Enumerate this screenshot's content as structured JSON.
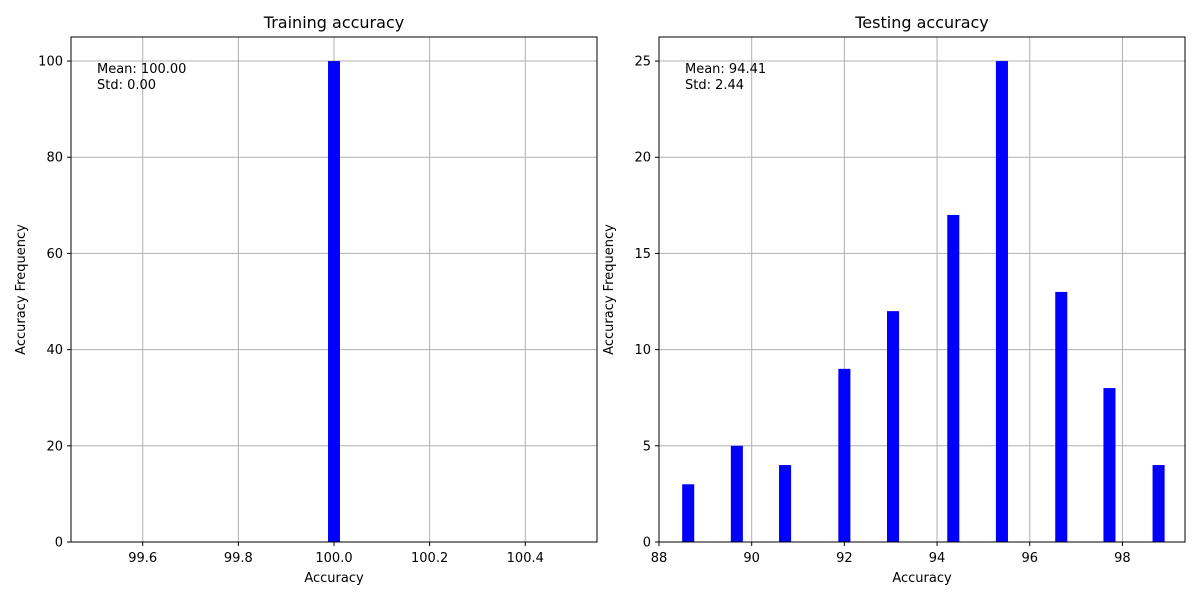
{
  "chart_data": [
    {
      "type": "bar",
      "title": "Training accuracy",
      "xlabel": "Accuracy",
      "ylabel": "Accuracy Frequency",
      "xlim": [
        99.45,
        100.55
      ],
      "ylim": [
        0,
        105
      ],
      "xticks": [
        99.6,
        99.8,
        100.0,
        100.2,
        100.4
      ],
      "xtick_labels": [
        "99.6",
        "99.8",
        "100.0",
        "100.2",
        "100.4"
      ],
      "yticks": [
        0,
        20,
        40,
        60,
        80,
        100
      ],
      "grid": true,
      "color": "#0000ff",
      "bar_width": 0.025,
      "bars": [
        {
          "x": 100.0,
          "value": 100
        }
      ],
      "annotation": [
        "Mean: 100.00",
        "Std: 0.00"
      ]
    },
    {
      "type": "bar",
      "title": "Testing accuracy",
      "xlabel": "Accuracy",
      "ylabel": "Accuracy Frequency",
      "xlim": [
        88.0,
        99.35
      ],
      "ylim": [
        0,
        26.25
      ],
      "xticks": [
        88,
        90,
        92,
        94,
        96,
        98
      ],
      "xtick_labels": [
        "88",
        "90",
        "92",
        "94",
        "96",
        "98"
      ],
      "yticks": [
        0,
        5,
        10,
        15,
        20,
        25
      ],
      "grid": true,
      "color": "#0000ff",
      "bar_width": 0.26,
      "bars": [
        {
          "x": 88.63,
          "value": 3
        },
        {
          "x": 89.68,
          "value": 5
        },
        {
          "x": 90.72,
          "value": 4
        },
        {
          "x": 92.0,
          "value": 9
        },
        {
          "x": 93.05,
          "value": 12
        },
        {
          "x": 94.35,
          "value": 17
        },
        {
          "x": 95.4,
          "value": 25
        },
        {
          "x": 96.68,
          "value": 13
        },
        {
          "x": 97.72,
          "value": 8
        },
        {
          "x": 98.78,
          "value": 4
        }
      ],
      "annotation": [
        "Mean: 94.41",
        "Std: 2.44"
      ]
    }
  ]
}
